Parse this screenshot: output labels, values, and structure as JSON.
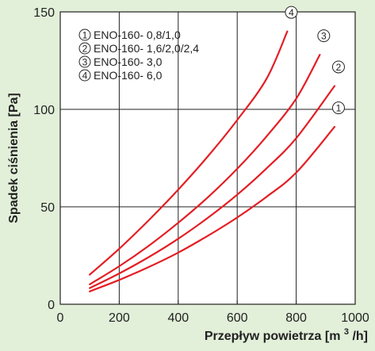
{
  "chart_data": {
    "type": "line",
    "xlabel": "Przepływ  powietrza",
    "xlabel_unit_prefix": "[m",
    "xlabel_unit_sup": "3",
    "xlabel_unit_suffix": "/h]",
    "ylabel": "Spadek  ciśnienia [Pa]",
    "xlim": [
      0,
      1000
    ],
    "ylim": [
      0,
      150
    ],
    "xticks": [
      "0",
      "200",
      "400",
      "600",
      "800",
      "1000"
    ],
    "yticks": [
      "0",
      "50",
      "100",
      "150"
    ],
    "grid": true,
    "legend_position": "top-left",
    "colors": {
      "line": "#e31e24",
      "background": "#e2efd9",
      "plot": "#ffffff"
    },
    "series": [
      {
        "marker": "①",
        "name": "ENO-160- 0,8/1,0",
        "x": [
          100,
          200,
          300,
          400,
          500,
          600,
          700,
          800,
          930
        ],
        "y": [
          6.6,
          12.5,
          19.1,
          26.5,
          35.1,
          44.5,
          55.2,
          67.5,
          91
        ]
      },
      {
        "marker": "②",
        "name": "ENO-160- 1,6/2,0/2,4",
        "x": [
          100,
          200,
          300,
          400,
          500,
          600,
          700,
          800,
          930
        ],
        "y": [
          8.3,
          15.8,
          24.2,
          33.6,
          44.3,
          56.2,
          69.8,
          85.2,
          112
        ]
      },
      {
        "marker": "③",
        "name": "ENO-160- 3,0",
        "x": [
          100,
          200,
          300,
          400,
          500,
          600,
          700,
          800,
          880
        ],
        "y": [
          10.2,
          19.5,
          30,
          41.8,
          54.8,
          69.5,
          86.2,
          105.5,
          128
        ]
      },
      {
        "marker": "④",
        "name": "ENO-160- 6,0",
        "x": [
          100,
          200,
          300,
          400,
          500,
          600,
          700,
          770
        ],
        "y": [
          15.2,
          28.5,
          43.1,
          58.8,
          75.8,
          94.5,
          115.8,
          140
        ]
      }
    ]
  }
}
